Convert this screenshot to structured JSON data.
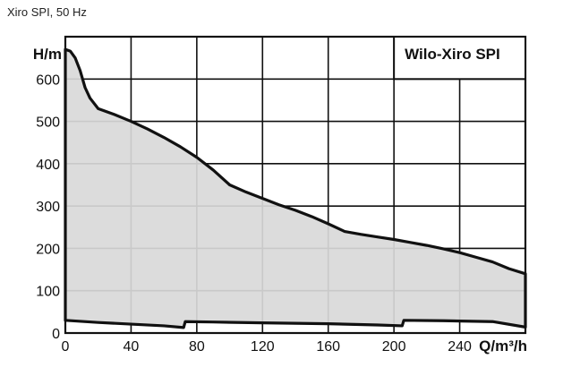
{
  "subtitle": "Xiro SPI, 50 Hz",
  "chart_data": {
    "type": "area",
    "title": "Wilo-Xiro SPI",
    "xlabel": "Q/m³/h",
    "ylabel": "H/m",
    "xlim": [
      0,
      280
    ],
    "ylim": [
      0,
      700
    ],
    "x_ticks": [
      0,
      40,
      80,
      120,
      160,
      200,
      240
    ],
    "y_ticks": [
      0,
      100,
      200,
      300,
      400,
      500,
      600
    ],
    "grid": true,
    "fill_color": "#d9d9d9",
    "line_color": "#111111",
    "series": [
      {
        "values_upper": [
          [
            0,
            670
          ],
          [
            3,
            666
          ],
          [
            6,
            650
          ],
          [
            9,
            620
          ],
          [
            12,
            580
          ],
          [
            15,
            555
          ],
          [
            20,
            530
          ],
          [
            30,
            516
          ],
          [
            40,
            500
          ],
          [
            50,
            482
          ],
          [
            60,
            462
          ],
          [
            70,
            440
          ],
          [
            80,
            415
          ],
          [
            90,
            385
          ],
          [
            100,
            350
          ],
          [
            110,
            333
          ],
          [
            120,
            318
          ],
          [
            130,
            303
          ],
          [
            140,
            290
          ],
          [
            150,
            275
          ],
          [
            160,
            258
          ],
          [
            170,
            240
          ],
          [
            180,
            233
          ],
          [
            190,
            227
          ],
          [
            200,
            221
          ],
          [
            210,
            214
          ],
          [
            220,
            207
          ],
          [
            230,
            199
          ],
          [
            240,
            190
          ],
          [
            250,
            179
          ],
          [
            260,
            168
          ],
          [
            270,
            152
          ],
          [
            280,
            140
          ]
        ],
        "values_lower": [
          [
            0,
            30
          ],
          [
            20,
            25
          ],
          [
            40,
            21
          ],
          [
            60,
            17
          ],
          [
            72,
            13
          ],
          [
            73,
            27
          ],
          [
            90,
            26
          ],
          [
            120,
            24
          ],
          [
            160,
            22
          ],
          [
            190,
            19
          ],
          [
            205,
            17
          ],
          [
            206,
            30
          ],
          [
            230,
            29
          ],
          [
            260,
            27
          ],
          [
            280,
            14
          ]
        ]
      }
    ]
  }
}
